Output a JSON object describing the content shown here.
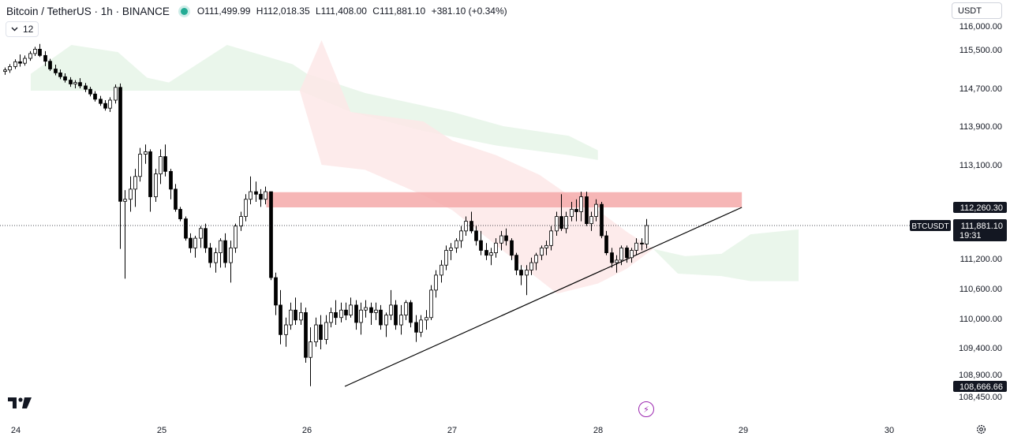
{
  "header": {
    "symbol": "Bitcoin / TetherUS · 1h · BINANCE",
    "ohlc": {
      "open": "O111,499.99",
      "high": "H112,018.35",
      "low": "L111,408.00",
      "close": "C111,881.10",
      "change": "+381.10 (+0.34%)"
    },
    "status_color": "#22ab94"
  },
  "indicator_toggle": {
    "count": "12",
    "icon": "chevron-down-icon"
  },
  "currency_selector": {
    "value": "USDT"
  },
  "bottom_icons": {
    "logo": "tradingview-logo",
    "events": "lightning-icon",
    "settings": "gear-icon"
  },
  "colors": {
    "up_candle_body": "#ffffff",
    "down_candle_body": "#000000",
    "cloud_bullish": "#e8f5e9",
    "cloud_bearish": "#fde8e8",
    "resistance_zone": "#f4a9a9",
    "trendline": "#000000",
    "last_price_label": "#131722"
  },
  "chart_data": {
    "type": "candlestick",
    "symbol": "BTCUSDT",
    "timeframe": "1h",
    "x_tick_labels": [
      "24",
      "25",
      "26",
      "27",
      "28",
      "29",
      "30"
    ],
    "x_range_days": [
      24.0,
      30.0
    ],
    "y_range": [
      108450,
      116000
    ],
    "y_tick_labels": [
      "116,000.00",
      "115,500.00",
      "114,700.00",
      "113,900.00",
      "113,100.00",
      "111,200.00",
      "110,600.00",
      "110,000.00",
      "109,400.00",
      "108,900.00",
      "108,450.00"
    ],
    "y_tick_values": [
      116000,
      115500,
      114700,
      113900,
      113100,
      111200,
      110600,
      110000,
      109400,
      108900,
      108450
    ],
    "price_labels": [
      {
        "label": "112,260.30",
        "value": 112260.3,
        "style": "marker"
      },
      {
        "label": "BTCUSDT",
        "value": 111881.1,
        "style": "symbol-tag"
      },
      {
        "label": "111,881.10",
        "value": 111881.1,
        "style": "last-price",
        "countdown": "19:31"
      },
      {
        "label": "108,666.66",
        "value": 108666.66,
        "style": "marker"
      }
    ],
    "resistance_zone": {
      "from_day": 25.72,
      "to_day": 28.99,
      "low": 112260.3,
      "high": 112560
    },
    "trendline": {
      "start": [
        26.26,
        108666.66
      ],
      "end": [
        28.99,
        112260.3
      ]
    },
    "ichimoku_cloud": [
      {
        "color": "bullish",
        "upper": [
          [
            24.1,
            115000
          ],
          [
            24.38,
            115600
          ],
          [
            24.7,
            115450
          ],
          [
            24.9,
            114920
          ],
          [
            25.05,
            114820
          ],
          [
            25.45,
            115600
          ],
          [
            25.9,
            115200
          ],
          [
            26.0,
            115000
          ],
          [
            26.4,
            114600
          ],
          [
            26.85,
            114300
          ],
          [
            27.0,
            114200
          ],
          [
            27.35,
            113900
          ],
          [
            27.8,
            113700
          ],
          [
            28.0,
            113400
          ]
        ],
        "lower": [
          [
            24.1,
            114650
          ],
          [
            24.6,
            114650
          ],
          [
            25.0,
            114650
          ],
          [
            25.5,
            114650
          ],
          [
            25.95,
            114650
          ],
          [
            26.3,
            114200
          ],
          [
            26.8,
            113800
          ],
          [
            27.3,
            113500
          ],
          [
            27.8,
            113300
          ],
          [
            28.0,
            113200
          ]
        ]
      },
      {
        "color": "bearish",
        "upper": [
          [
            25.95,
            114650
          ],
          [
            26.1,
            115700
          ],
          [
            26.3,
            114200
          ],
          [
            26.8,
            114000
          ],
          [
            27.0,
            113600
          ],
          [
            27.3,
            113300
          ],
          [
            27.6,
            112900
          ],
          [
            27.8,
            112500
          ],
          [
            28.0,
            112200
          ],
          [
            28.2,
            111750
          ],
          [
            28.38,
            111400
          ]
        ],
        "lower": [
          [
            25.95,
            114650
          ],
          [
            26.1,
            113100
          ],
          [
            26.4,
            113000
          ],
          [
            26.8,
            112500
          ],
          [
            27.0,
            112200
          ],
          [
            27.25,
            111600
          ],
          [
            27.5,
            111000
          ],
          [
            27.72,
            110500
          ],
          [
            28.0,
            110700
          ],
          [
            28.2,
            111000
          ],
          [
            28.38,
            111400
          ]
        ]
      },
      {
        "color": "bullish",
        "upper": [
          [
            28.38,
            111400
          ],
          [
            28.6,
            111250
          ],
          [
            28.85,
            111300
          ],
          [
            29.05,
            111700
          ],
          [
            29.38,
            111800
          ]
        ],
        "lower": [
          [
            28.38,
            111400
          ],
          [
            28.55,
            110900
          ],
          [
            28.85,
            110850
          ],
          [
            29.05,
            110750
          ],
          [
            29.38,
            110750
          ]
        ]
      }
    ],
    "candles_ohlc": [
      [
        115050,
        115130,
        114980,
        115080
      ],
      [
        115080,
        115200,
        115020,
        115150
      ],
      [
        115150,
        115300,
        115100,
        115250
      ],
      [
        115250,
        115400,
        115150,
        115220
      ],
      [
        115220,
        115380,
        115170,
        115320
      ],
      [
        115320,
        115470,
        115270,
        115420
      ],
      [
        115420,
        115560,
        115370,
        115510
      ],
      [
        115510,
        115620,
        115350,
        115380
      ],
      [
        115380,
        115470,
        115160,
        115260
      ],
      [
        115260,
        115310,
        115060,
        115100
      ],
      [
        115100,
        115190,
        114970,
        115020
      ],
      [
        115020,
        115090,
        114890,
        114940
      ],
      [
        114940,
        115010,
        114820,
        114870
      ],
      [
        114870,
        114930,
        114730,
        114790
      ],
      [
        114790,
        114870,
        114700,
        114820
      ],
      [
        114820,
        114910,
        114700,
        114750
      ],
      [
        114750,
        114810,
        114620,
        114680
      ],
      [
        114680,
        114730,
        114530,
        114580
      ],
      [
        114580,
        114640,
        114420,
        114470
      ],
      [
        114470,
        114540,
        114330,
        114380
      ],
      [
        114380,
        114450,
        114230,
        114280
      ],
      [
        114280,
        114510,
        114200,
        114450
      ],
      [
        114450,
        114780,
        114380,
        114720
      ],
      [
        114720,
        114800,
        111400,
        112380
      ],
      [
        112380,
        112600,
        110800,
        112420
      ],
      [
        112420,
        112870,
        112170,
        112620
      ],
      [
        112620,
        113020,
        112270,
        112870
      ],
      [
        112870,
        113450,
        112770,
        113320
      ],
      [
        113320,
        113520,
        113120,
        113370
      ],
      [
        113370,
        113420,
        112170,
        112470
      ],
      [
        112470,
        113020,
        112370,
        112920
      ],
      [
        112920,
        113420,
        112720,
        113270
      ],
      [
        113270,
        113520,
        112870,
        112970
      ],
      [
        112970,
        113020,
        112420,
        112620
      ],
      [
        112620,
        112720,
        112170,
        112220
      ],
      [
        112220,
        112270,
        111970,
        112020
      ],
      [
        112020,
        112070,
        111570,
        111620
      ],
      [
        111620,
        111720,
        111320,
        111420
      ],
      [
        111420,
        111670,
        111220,
        111620
      ],
      [
        111620,
        111870,
        111420,
        111820
      ],
      [
        111820,
        111920,
        111320,
        111420
      ],
      [
        111420,
        111520,
        111020,
        111120
      ],
      [
        111120,
        111420,
        110920,
        111320
      ],
      [
        111320,
        111620,
        111020,
        111570
      ],
      [
        111570,
        111720,
        111020,
        111120
      ],
      [
        111120,
        111570,
        110720,
        111420
      ],
      [
        111420,
        111920,
        111320,
        111870
      ],
      [
        111870,
        112170,
        111770,
        112070
      ],
      [
        112070,
        112520,
        111970,
        112420
      ],
      [
        112420,
        112870,
        112320,
        112570
      ],
      [
        112570,
        112770,
        112370,
        112520
      ],
      [
        112520,
        112620,
        112270,
        112420
      ],
      [
        112420,
        112670,
        112320,
        112570
      ],
      [
        112570,
        112570,
        110770,
        110820
      ],
      [
        110820,
        110920,
        110070,
        110270
      ],
      [
        110270,
        110570,
        109470,
        109670
      ],
      [
        109670,
        110020,
        109420,
        109870
      ],
      [
        109870,
        110320,
        109770,
        110170
      ],
      [
        110170,
        110420,
        109870,
        109970
      ],
      [
        109970,
        110320,
        109870,
        110120
      ],
      [
        110120,
        110220,
        109120,
        109220
      ],
      [
        109220,
        109820,
        108670,
        109520
      ],
      [
        109520,
        110020,
        109420,
        109870
      ],
      [
        109870,
        110070,
        109370,
        109570
      ],
      [
        109570,
        110070,
        109470,
        109920
      ],
      [
        109920,
        110220,
        109820,
        110120
      ],
      [
        110120,
        110370,
        109870,
        110020
      ],
      [
        110020,
        110320,
        109920,
        110170
      ],
      [
        110170,
        110320,
        109970,
        110070
      ],
      [
        110070,
        110420,
        110020,
        110270
      ],
      [
        110270,
        110370,
        109770,
        109920
      ],
      [
        109920,
        110320,
        109670,
        110170
      ],
      [
        110170,
        110370,
        110020,
        110220
      ],
      [
        110220,
        110320,
        109870,
        110120
      ],
      [
        110120,
        110320,
        109970,
        110170
      ],
      [
        110170,
        110270,
        109770,
        109870
      ],
      [
        109870,
        110120,
        109620,
        110070
      ],
      [
        110070,
        110570,
        109970,
        110270
      ],
      [
        110270,
        110370,
        109770,
        109870
      ],
      [
        109870,
        110270,
        109670,
        110070
      ],
      [
        110070,
        110370,
        109970,
        110320
      ],
      [
        110320,
        110370,
        109820,
        109920
      ],
      [
        109920,
        110070,
        109520,
        109720
      ],
      [
        109720,
        110070,
        109620,
        109970
      ],
      [
        109970,
        110170,
        109770,
        110020
      ],
      [
        110020,
        110670,
        109970,
        110570
      ],
      [
        110570,
        110970,
        110420,
        110870
      ],
      [
        110870,
        111170,
        110720,
        111070
      ],
      [
        111070,
        111470,
        110970,
        111370
      ],
      [
        111370,
        111520,
        111170,
        111420
      ],
      [
        111420,
        111620,
        111320,
        111570
      ],
      [
        111570,
        111870,
        111420,
        111770
      ],
      [
        111770,
        112070,
        111670,
        111970
      ],
      [
        111970,
        112170,
        111720,
        111770
      ],
      [
        111770,
        111870,
        111470,
        111570
      ],
      [
        111570,
        111770,
        111270,
        111370
      ],
      [
        111370,
        111520,
        111170,
        111270
      ],
      [
        111270,
        111420,
        111070,
        111320
      ],
      [
        111320,
        111620,
        111220,
        111520
      ],
      [
        111520,
        111770,
        111370,
        111670
      ],
      [
        111670,
        111820,
        111470,
        111570
      ],
      [
        111570,
        111620,
        111170,
        111270
      ],
      [
        111270,
        111320,
        110870,
        110970
      ],
      [
        110970,
        111070,
        110670,
        110870
      ],
      [
        110870,
        111070,
        110470,
        110970
      ],
      [
        110970,
        111220,
        110870,
        111120
      ],
      [
        111120,
        111320,
        110970,
        111270
      ],
      [
        111270,
        111470,
        111170,
        111420
      ],
      [
        111420,
        111570,
        111270,
        111470
      ],
      [
        111470,
        111870,
        111370,
        111770
      ],
      [
        111770,
        112170,
        111670,
        112070
      ],
      [
        112070,
        112520,
        111770,
        111820
      ],
      [
        111820,
        112170,
        111720,
        112070
      ],
      [
        112070,
        112370,
        111970,
        112220
      ],
      [
        112220,
        112420,
        111970,
        112170
      ],
      [
        112170,
        112570,
        111970,
        112470
      ],
      [
        112470,
        112570,
        111870,
        111920
      ],
      [
        111920,
        112170,
        111770,
        112070
      ],
      [
        112070,
        112420,
        111970,
        112320
      ],
      [
        112320,
        112370,
        111620,
        111670
      ],
      [
        111670,
        111770,
        111270,
        111320
      ],
      [
        111320,
        111420,
        111020,
        111120
      ],
      [
        111120,
        111270,
        110920,
        111170
      ],
      [
        111170,
        111470,
        111070,
        111420
      ],
      [
        111420,
        111470,
        111120,
        111220
      ],
      [
        111220,
        111420,
        111120,
        111370
      ],
      [
        111370,
        111620,
        111270,
        111520
      ],
      [
        111520,
        111620,
        111370,
        111500
      ],
      [
        111500,
        112018,
        111408,
        111881
      ]
    ]
  }
}
